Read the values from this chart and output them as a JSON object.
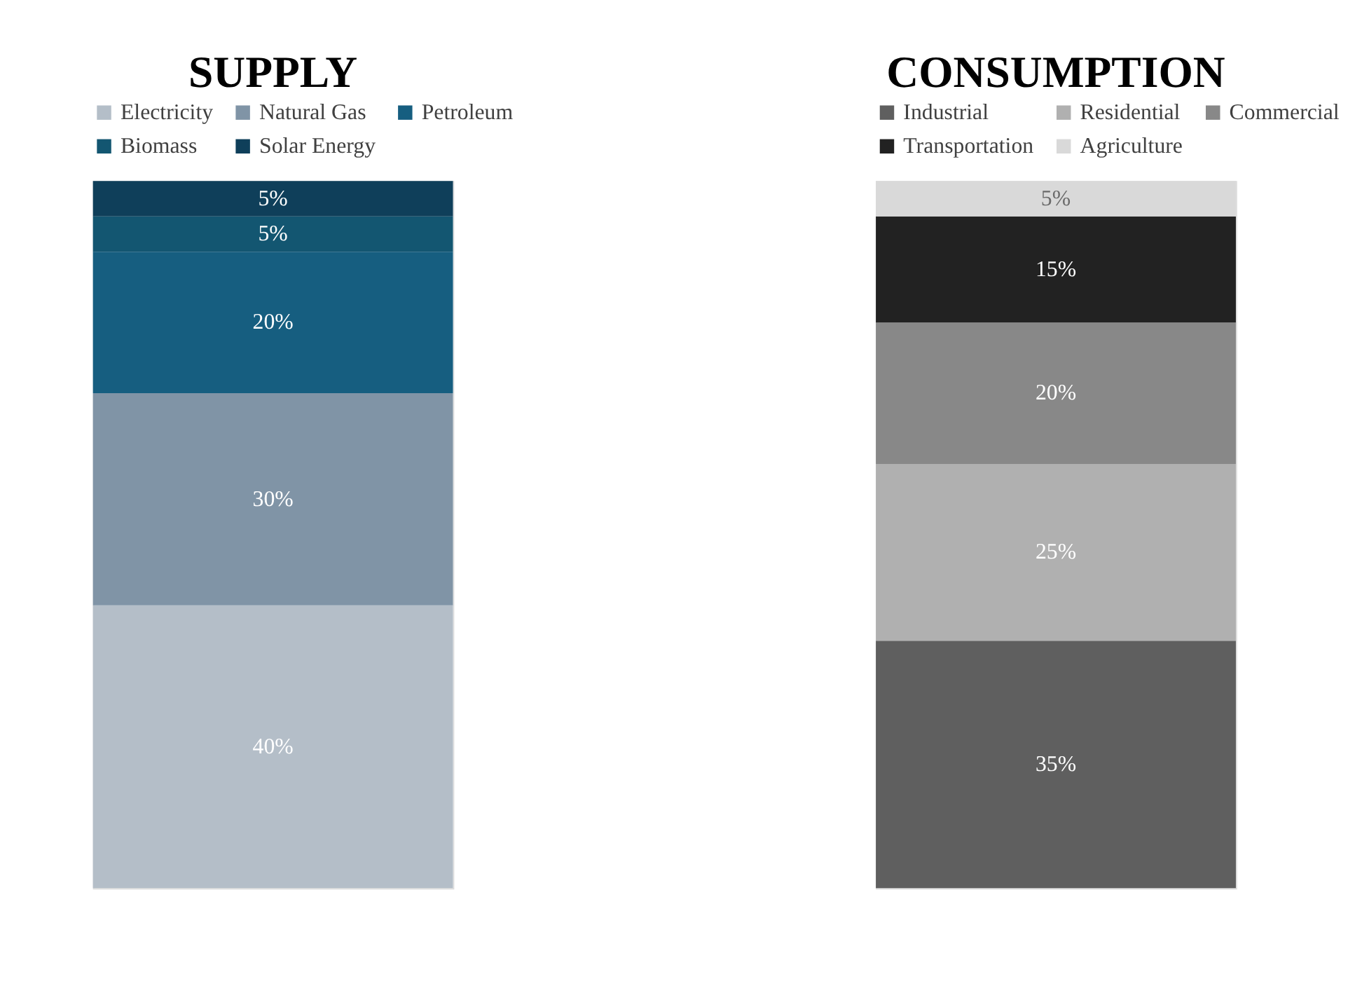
{
  "chart_data": {
    "type": "bar",
    "stacked": true,
    "legend": "top",
    "grid": false,
    "categories": [
      "SUPPLY",
      "CONSUMPTION"
    ],
    "series": [
      {
        "name": "Electricity",
        "color": "#b4bec8",
        "values": [
          40,
          null
        ],
        "value_labels": [
          "40%",
          null
        ]
      },
      {
        "name": "Natural Gas",
        "color": "#8094a6",
        "values": [
          30,
          null
        ],
        "value_labels": [
          "30%",
          null
        ]
      },
      {
        "name": "Petroleum",
        "color": "#165e80",
        "values": [
          20,
          null
        ],
        "value_labels": [
          "20%",
          null
        ]
      },
      {
        "name": "Biomass",
        "color": "#135671",
        "values": [
          5,
          null
        ],
        "value_labels": [
          "5%",
          null
        ]
      },
      {
        "name": "Solar Energy",
        "color": "#0f3f5a",
        "values": [
          5,
          null
        ],
        "value_labels": [
          "5%",
          null
        ]
      },
      {
        "name": "Industrial",
        "color": "#5f5f5f",
        "values": [
          null,
          35
        ],
        "value_labels": [
          null,
          "35%"
        ]
      },
      {
        "name": "Residential",
        "color": "#b0b0b0",
        "values": [
          null,
          25
        ],
        "value_labels": [
          null,
          "25%"
        ]
      },
      {
        "name": "Commercial",
        "color": "#888888",
        "values": [
          null,
          20
        ],
        "value_labels": [
          null,
          "20%"
        ]
      },
      {
        "name": "Transportation",
        "color": "#222222",
        "values": [
          null,
          15
        ],
        "value_labels": [
          null,
          "15%"
        ]
      },
      {
        "name": "Agriculture",
        "color": "#d9d9d9",
        "values": [
          null,
          5
        ],
        "value_labels": [
          null,
          "5%"
        ]
      }
    ]
  }
}
